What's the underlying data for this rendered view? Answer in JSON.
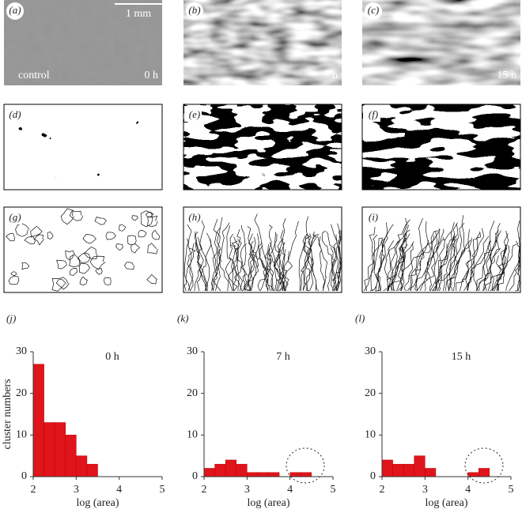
{
  "panels": [
    {
      "label": "(a)",
      "caption": "0 h",
      "note": "control",
      "scale": "1 mm"
    },
    {
      "label": "(b)",
      "caption": "7 h"
    },
    {
      "label": "(c)",
      "caption": "15 h"
    },
    {
      "label": "(d)"
    },
    {
      "label": "(e)"
    },
    {
      "label": "(f)"
    },
    {
      "label": "(g)"
    },
    {
      "label": "(h)"
    },
    {
      "label": "(i)"
    }
  ],
  "chart_data": [
    {
      "type": "histogram",
      "label": "(j)",
      "annotation": "0 h",
      "ylabel": "cluster numbers",
      "xlabel": "log (area)",
      "bins": [
        2,
        2.25,
        2.5,
        2.75,
        3,
        3.25,
        3.5
      ],
      "values": [
        27,
        13,
        13,
        10,
        5,
        3
      ],
      "color": "#e0141b",
      "xlim": [
        2,
        5
      ],
      "ylim": [
        0,
        30
      ],
      "xticks": [
        2,
        3,
        4,
        5
      ],
      "yticks": [
        0,
        10,
        20,
        30
      ]
    },
    {
      "type": "histogram",
      "label": "(k)",
      "annotation": "7 h",
      "xlabel": "log (area)",
      "bins": [
        2,
        2.25,
        2.5,
        2.75,
        3,
        3.25,
        3.5,
        3.75,
        4,
        4.25,
        4.5
      ],
      "values": [
        2,
        3,
        4,
        3,
        1,
        1,
        1,
        0,
        1,
        1
      ],
      "color": "#e0141b",
      "xlim": [
        2,
        5
      ],
      "ylim": [
        0,
        30
      ],
      "xticks": [
        2,
        3,
        4,
        5
      ],
      "yticks": [
        0,
        10,
        20,
        30
      ]
    },
    {
      "type": "histogram",
      "label": "(l)",
      "annotation": "15 h",
      "xlabel": "log (area)",
      "bins": [
        2,
        2.25,
        2.5,
        2.75,
        3,
        3.25,
        3.5,
        3.75,
        4,
        4.25,
        4.5
      ],
      "values": [
        4,
        3,
        3,
        5,
        2,
        0,
        0,
        0,
        1,
        2
      ],
      "color": "#e0141b",
      "xlim": [
        2,
        5
      ],
      "ylim": [
        0,
        30
      ],
      "xticks": [
        2,
        3,
        4,
        5
      ],
      "yticks": [
        0,
        10,
        20,
        30
      ]
    }
  ]
}
